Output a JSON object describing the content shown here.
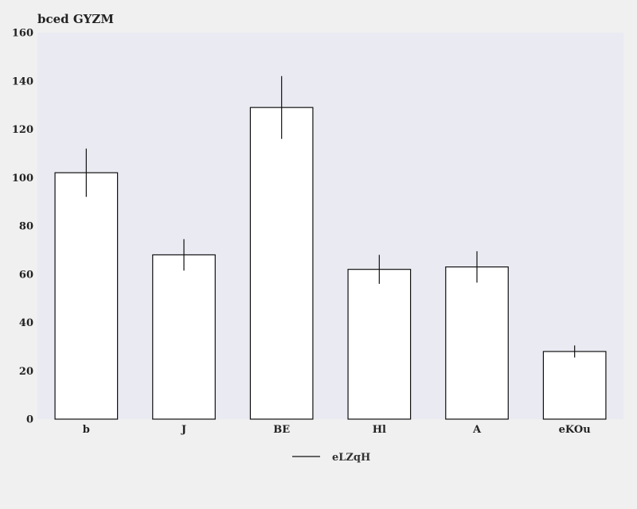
{
  "chart_data": {
    "type": "bar",
    "title": "bced GYZM",
    "xlabel": "",
    "ylabel": "",
    "categories": [
      "b",
      "J",
      "BE",
      "Hl",
      "A",
      "eKOu"
    ],
    "series": [
      {
        "name": "eLZqH",
        "values": [
          102,
          68,
          129,
          62,
          63,
          28
        ],
        "errors": [
          10,
          6.5,
          13,
          6,
          6.5,
          2.5
        ]
      }
    ],
    "ylim": [
      0,
      160
    ],
    "yticks": [
      0,
      20,
      40,
      60,
      80,
      100,
      120,
      140,
      160
    ],
    "grid": false,
    "legend_position": "bottom-center",
    "colors": {
      "plot_background": "#eaeaf2",
      "page_background": "#f0f0f0",
      "bar_fill": "#ffffff",
      "bar_stroke": "#111111",
      "errorbar": "#111111"
    }
  }
}
